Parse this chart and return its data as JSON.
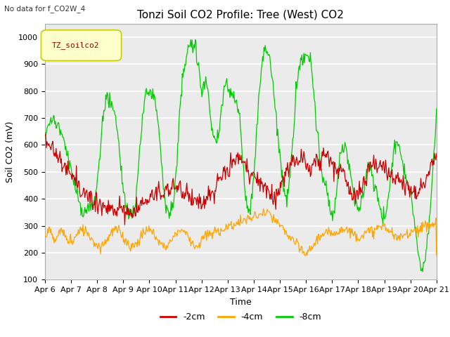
{
  "title": "Tonzi Soil CO2 Profile: Tree (West) CO2",
  "subtitle": "No data for f_CO2W_4",
  "xlabel": "Time",
  "ylabel": "Soil CO2 (mV)",
  "ylim": [
    100,
    1050
  ],
  "yticks": [
    100,
    200,
    300,
    400,
    500,
    600,
    700,
    800,
    900,
    1000
  ],
  "xtick_labels": [
    "Apr 6",
    "Apr 7",
    "Apr 8",
    "Apr 9",
    "Apr 10",
    "Apr 11",
    "Apr 12",
    "Apr 13",
    "Apr 14",
    "Apr 15",
    "Apr 16",
    "Apr 17",
    "Apr 18",
    "Apr 19",
    "Apr 20",
    "Apr 21"
  ],
  "legend_label": "TZ_soilco2",
  "line_labels": [
    "-2cm",
    "-4cm",
    "-8cm"
  ],
  "line_colors": [
    "#cc0000",
    "#ffa500",
    "#00cc00"
  ],
  "background_color": "#ffffff",
  "plot_bg_color": "#ebebeb",
  "grid_color": "#ffffff",
  "title_fontsize": 11,
  "axis_fontsize": 9,
  "tick_fontsize": 8
}
